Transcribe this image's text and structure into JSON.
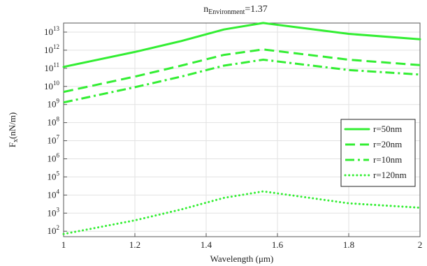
{
  "chart_data": {
    "type": "line",
    "title": {
      "base": "n",
      "sub": "Environment",
      "suffix": "=1.37"
    },
    "xlabel": "Wavelength (μm)",
    "ylabel": {
      "base": "F",
      "sub": "x",
      "suffix": "(nN/m)"
    },
    "xlim": [
      1,
      2
    ],
    "ylim_log10": [
      1.7,
      13.5
    ],
    "yscale": "log",
    "grid": true,
    "legend_position": "right",
    "x_ticks": [
      "1",
      "1.2",
      "1.4",
      "1.6",
      "1.8",
      "2"
    ],
    "y_ticks": [
      {
        "base": "10",
        "exp": "2"
      },
      {
        "base": "10",
        "exp": "3"
      },
      {
        "base": "10",
        "exp": "4"
      },
      {
        "base": "10",
        "exp": "5"
      },
      {
        "base": "10",
        "exp": "6"
      },
      {
        "base": "10",
        "exp": "7"
      },
      {
        "base": "10",
        "exp": "8"
      },
      {
        "base": "10",
        "exp": "9"
      },
      {
        "base": "10",
        "exp": "10"
      },
      {
        "base": "10",
        "exp": "11"
      },
      {
        "base": "10",
        "exp": "12"
      },
      {
        "base": "10",
        "exp": "13"
      }
    ],
    "x": [
      1.0,
      1.2,
      1.33,
      1.45,
      1.56,
      1.8,
      2.0
    ],
    "series": [
      {
        "name": "r=50nm",
        "style": "solid",
        "color": "#33ee33",
        "y": [
          120000000000.0,
          800000000000.0,
          3200000000000.0,
          14000000000000.0,
          32000000000000.0,
          8000000000000.0,
          4000000000000.0
        ]
      },
      {
        "name": "r=20nm",
        "style": "dashed",
        "color": "#33ee33",
        "y": [
          5000000000.0,
          35000000000.0,
          140000000000.0,
          550000000000.0,
          1100000000000.0,
          300000000000.0,
          150000000000.0
        ]
      },
      {
        "name": "r=10nm",
        "style": "dashdot",
        "color": "#33ee33",
        "y": [
          1300000000.0,
          9000000000.0,
          35000000000.0,
          140000000000.0,
          300000000000.0,
          80000000000.0,
          45000000000.0
        ]
      },
      {
        "name": "r=120nm",
        "style": "dotted",
        "color": "#33ee33",
        "y": [
          70,
          400,
          1600,
          7000,
          16000,
          3500,
          2000
        ]
      }
    ]
  }
}
